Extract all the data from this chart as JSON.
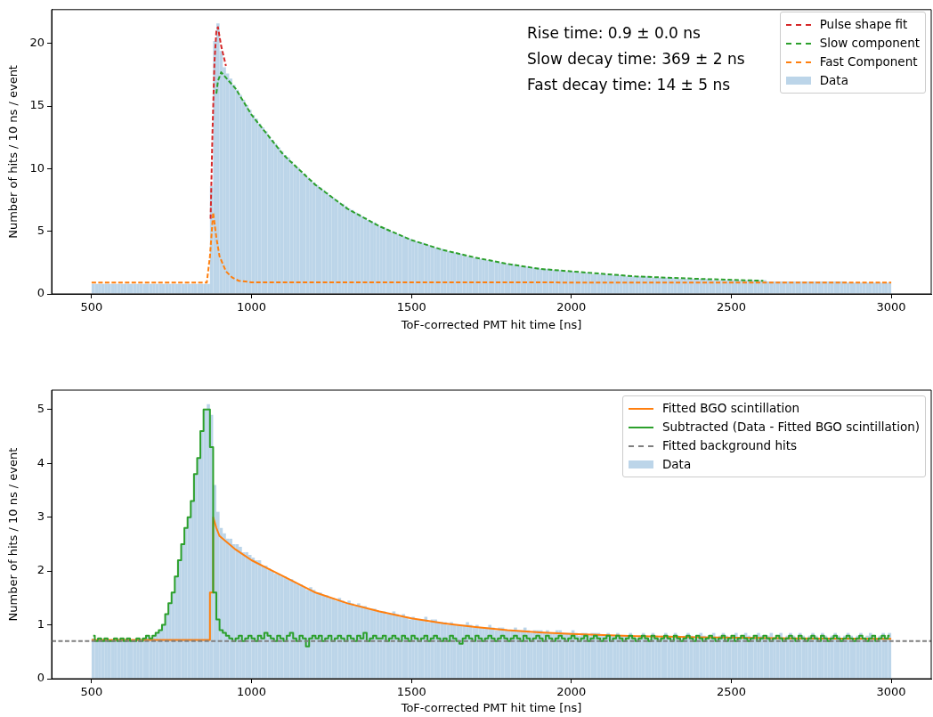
{
  "chart_data": [
    {
      "type": "histogram",
      "xlabel": "ToF-corrected PMT hit time [ns]",
      "ylabel": "Number of hits / 10 ns / event",
      "annotations": [
        "Rise time: 0.9 ± 0.0 ns",
        "Slow decay time: 369 ± 2 ns",
        "Fast decay time: 14 ± 5 ns"
      ],
      "legend": "top right",
      "grid": false,
      "xlim": [
        375,
        3125
      ],
      "ylim": [
        0,
        22.7
      ],
      "xticks": [
        500,
        1000,
        1500,
        2000,
        2500,
        3000
      ],
      "yticks": [
        0,
        5,
        10,
        15,
        20
      ],
      "bins": [
        500,
        510,
        520,
        530,
        540,
        550,
        560,
        570,
        580,
        590,
        600,
        610,
        620,
        630,
        640,
        650,
        660,
        670,
        680,
        690,
        700,
        710,
        720,
        730,
        740,
        750,
        760,
        770,
        780,
        790,
        800,
        810,
        820,
        830,
        840,
        850,
        860,
        870,
        880,
        890,
        900,
        910,
        920,
        930,
        940,
        950,
        960,
        970,
        980,
        990,
        1000,
        1010,
        1020,
        1030,
        1040,
        1050,
        1060,
        1070,
        1080,
        1090,
        1100,
        1110,
        1120,
        1130,
        1140,
        1150,
        1160,
        1170,
        1180,
        1190,
        1200,
        1210,
        1220,
        1230,
        1240,
        1250,
        1260,
        1270,
        1280,
        1290,
        1300,
        1310,
        1320,
        1330,
        1340,
        1350,
        1360,
        1370,
        1380,
        1390,
        1400,
        1410,
        1420,
        1430,
        1440,
        1450,
        1460,
        1470,
        1480,
        1490,
        1500,
        1510,
        1520,
        1530,
        1540,
        1550,
        1560,
        1570,
        1580,
        1590,
        1600,
        1610,
        1620,
        1630,
        1640,
        1650,
        1660,
        1670,
        1680,
        1690,
        1700,
        1710,
        1720,
        1730,
        1740,
        1750,
        1760,
        1770,
        1780,
        1790,
        1800,
        1810,
        1820,
        1830,
        1840,
        1850,
        1860,
        1870,
        1880,
        1890,
        1900,
        1910,
        1920,
        1930,
        1940,
        1950,
        1960,
        1970,
        1980,
        1990,
        2000,
        2010,
        2020,
        2030,
        2040,
        2050,
        2060,
        2070,
        2080,
        2090,
        2100,
        2110,
        2120,
        2130,
        2140,
        2150,
        2160,
        2170,
        2180,
        2190,
        2200,
        2210,
        2220,
        2230,
        2240,
        2250,
        2260,
        2270,
        2280,
        2290,
        2300,
        2310,
        2320,
        2330,
        2340,
        2350,
        2360,
        2370,
        2380,
        2390,
        2400,
        2410,
        2420,
        2430,
        2440,
        2450,
        2460,
        2470,
        2480,
        2490,
        2500,
        2510,
        2520,
        2530,
        2540,
        2550,
        2560,
        2570,
        2580,
        2590,
        2600,
        2610,
        2620,
        2630,
        2640,
        2650,
        2660,
        2670,
        2680,
        2690,
        2700,
        2710,
        2720,
        2730,
        2740,
        2750,
        2760,
        2770,
        2780,
        2790,
        2800,
        2810,
        2820,
        2830,
        2840,
        2850,
        2860,
        2870,
        2880,
        2890,
        2900,
        2910,
        2920,
        2930,
        2940,
        2950,
        2960,
        2970,
        2980,
        2990,
        3000
      ],
      "series": [
        {
          "type": "line",
          "name": "Pulse shape fit",
          "color": "#d62728",
          "line_style": "dashed",
          "x": [
            872,
            878,
            884,
            890,
            895,
            905,
            920
          ],
          "values": [
            6,
            13,
            18.5,
            21,
            21.3,
            19.8,
            18.2
          ]
        },
        {
          "type": "line",
          "name": "Slow component",
          "color": "#2ca02c",
          "line_style": "dashed",
          "x": [
            890,
            895,
            905,
            950,
            1000,
            1100,
            1200,
            1300,
            1400,
            1500,
            1600,
            1700,
            1800,
            1900,
            2000,
            2200,
            2400,
            2600
          ],
          "values": [
            16,
            17,
            17.7,
            16.4,
            14.3,
            11.1,
            8.7,
            6.8,
            5.4,
            4.3,
            3.5,
            2.9,
            2.4,
            2.0,
            1.8,
            1.4,
            1.2,
            1.05
          ]
        },
        {
          "type": "line",
          "name": "Fast Component",
          "color": "#ff7f0e",
          "line_style": "dashed",
          "x": [
            500,
            860,
            870,
            880,
            890,
            900,
            920,
            940,
            960,
            1000,
            3000
          ],
          "values": [
            0.9,
            0.9,
            3,
            6.5,
            4.5,
            3,
            1.8,
            1.3,
            1.05,
            0.93,
            0.9
          ]
        },
        {
          "type": "histogram",
          "name": "Data",
          "color": "#bcd5e9",
          "values": [
            0.8,
            0.8,
            0.8,
            0.8,
            0.8,
            0.8,
            0.8,
            0.8,
            0.8,
            0.8,
            0.8,
            0.8,
            0.8,
            0.8,
            0.8,
            0.8,
            0.8,
            0.8,
            0.8,
            0.8,
            0.8,
            0.8,
            0.8,
            0.8,
            0.8,
            0.8,
            0.8,
            0.8,
            0.8,
            0.8,
            0.8,
            0.8,
            0.8,
            0.8,
            0.8,
            0.8,
            0.8,
            8.6,
            20.2,
            21.6,
            19.4,
            18.1,
            17.6,
            17.2,
            16.7,
            16.3,
            15.9,
            15.5,
            15.1,
            14.7,
            14.3,
            14.0,
            13.6,
            13.3,
            13.0,
            12.6,
            12.3,
            12.0,
            11.7,
            11.4,
            11.1,
            10.9,
            10.6,
            10.3,
            10.1,
            9.8,
            9.6,
            9.3,
            9.1,
            8.9,
            8.7,
            8.5,
            8.3,
            8.1,
            7.9,
            7.7,
            7.5,
            7.3,
            7.2,
            7.0,
            6.8,
            6.7,
            6.5,
            6.4,
            6.2,
            6.1,
            5.9,
            5.8,
            5.7,
            5.5,
            5.4,
            5.3,
            5.2,
            5.0,
            4.9,
            4.8,
            4.7,
            4.6,
            4.5,
            4.4,
            4.3,
            4.2,
            4.1,
            4.1,
            4.0,
            3.9,
            3.8,
            3.7,
            3.6,
            3.6,
            3.5,
            3.4,
            3.4,
            3.3,
            3.2,
            3.2,
            3.1,
            3.0,
            3.0,
            2.9,
            2.9,
            2.8,
            2.8,
            2.7,
            2.7,
            2.6,
            2.6,
            2.5,
            2.5,
            2.4,
            2.4,
            2.4,
            2.3,
            2.3,
            2.2,
            2.2,
            2.2,
            2.1,
            2.1,
            2.1,
            2.0,
            2.0,
            2.0,
            2.0,
            1.9,
            1.9,
            1.9,
            1.8,
            1.8,
            1.8,
            1.8,
            1.7,
            1.7,
            1.7,
            1.7,
            1.7,
            1.6,
            1.6,
            1.6,
            1.6,
            1.6,
            1.5,
            1.5,
            1.5,
            1.5,
            1.5,
            1.5,
            1.4,
            1.4,
            1.4,
            1.4,
            1.4,
            1.4,
            1.4,
            1.3,
            1.3,
            1.3,
            1.3,
            1.3,
            1.3,
            1.3,
            1.3,
            1.2,
            1.2,
            1.2,
            1.2,
            1.2,
            1.2,
            1.2,
            1.2,
            1.2,
            1.2,
            1.2,
            1.2,
            1.1,
            1.1,
            1.1,
            1.1,
            1.1,
            1.1,
            1.1,
            1.1,
            1.1,
            1.1,
            1.1,
            1.1,
            1.1,
            1.1,
            1.1,
            1.1,
            1.1,
            1.0,
            1.0,
            1.0,
            1.0,
            1.0,
            1.0,
            1.0,
            1.0,
            1.0,
            1.0,
            1.0,
            1.0,
            1.0,
            1.0,
            1.0,
            1.0,
            1.0,
            1.0,
            1.0,
            1.0,
            1.0,
            1.0,
            1.0,
            1.0,
            1.0,
            0.9,
            0.9,
            0.9,
            0.9,
            0.9,
            0.9,
            0.9,
            0.9,
            0.9,
            0.9,
            0.9,
            0.9,
            0.9,
            0.9
          ]
        }
      ]
    },
    {
      "type": "histogram",
      "xlabel": "ToF-corrected PMT hit time [ns]",
      "ylabel": "Number of hits / 10 ns / event",
      "legend": "top right",
      "grid": false,
      "xlim": [
        375,
        3125
      ],
      "ylim": [
        0,
        5.36
      ],
      "xticks": [
        500,
        1000,
        1500,
        2000,
        2500,
        3000
      ],
      "yticks": [
        0,
        1,
        2,
        3,
        4,
        5
      ],
      "bins": [
        500,
        510,
        520,
        530,
        540,
        550,
        560,
        570,
        580,
        590,
        600,
        610,
        620,
        630,
        640,
        650,
        660,
        670,
        680,
        690,
        700,
        710,
        720,
        730,
        740,
        750,
        760,
        770,
        780,
        790,
        800,
        810,
        820,
        830,
        840,
        850,
        860,
        870,
        880,
        890,
        900,
        910,
        920,
        930,
        940,
        950,
        960,
        970,
        980,
        990,
        1000,
        1010,
        1020,
        1030,
        1040,
        1050,
        1060,
        1070,
        1080,
        1090,
        1100,
        1110,
        1120,
        1130,
        1140,
        1150,
        1160,
        1170,
        1180,
        1190,
        1200,
        1210,
        1220,
        1230,
        1240,
        1250,
        1260,
        1270,
        1280,
        1290,
        1300,
        1310,
        1320,
        1330,
        1340,
        1350,
        1360,
        1370,
        1380,
        1390,
        1400,
        1410,
        1420,
        1430,
        1440,
        1450,
        1460,
        1470,
        1480,
        1490,
        1500,
        1510,
        1520,
        1530,
        1540,
        1550,
        1560,
        1570,
        1580,
        1590,
        1600,
        1610,
        1620,
        1630,
        1640,
        1650,
        1660,
        1670,
        1680,
        1690,
        1700,
        1710,
        1720,
        1730,
        1740,
        1750,
        1760,
        1770,
        1780,
        1790,
        1800,
        1810,
        1820,
        1830,
        1840,
        1850,
        1860,
        1870,
        1880,
        1890,
        1900,
        1910,
        1920,
        1930,
        1940,
        1950,
        1960,
        1970,
        1980,
        1990,
        2000,
        2010,
        2020,
        2030,
        2040,
        2050,
        2060,
        2070,
        2080,
        2090,
        2100,
        2110,
        2120,
        2130,
        2140,
        2150,
        2160,
        2170,
        2180,
        2190,
        2200,
        2210,
        2220,
        2230,
        2240,
        2250,
        2260,
        2270,
        2280,
        2290,
        2300,
        2310,
        2320,
        2330,
        2340,
        2350,
        2360,
        2370,
        2380,
        2390,
        2400,
        2410,
        2420,
        2430,
        2440,
        2450,
        2460,
        2470,
        2480,
        2490,
        2500,
        2510,
        2520,
        2530,
        2540,
        2550,
        2560,
        2570,
        2580,
        2590,
        2600,
        2610,
        2620,
        2630,
        2640,
        2650,
        2660,
        2670,
        2680,
        2690,
        2700,
        2710,
        2720,
        2730,
        2740,
        2750,
        2760,
        2770,
        2780,
        2790,
        2800,
        2810,
        2820,
        2830,
        2840,
        2850,
        2860,
        2870,
        2880,
        2890,
        2900,
        2910,
        2920,
        2930,
        2940,
        2950,
        2960,
        2970,
        2980,
        2990,
        3000
      ],
      "ref_lines": [
        {
          "axis": "y",
          "value": 0.7,
          "label": "Fitted background hits",
          "color": "#7f7f7f",
          "line_style": "dashed"
        }
      ],
      "series": [
        {
          "type": "line",
          "name": "Fitted BGO scintillation",
          "color": "#ff7f0e",
          "x": [
            500,
            870,
            870,
            880,
            880,
            890,
            900,
            950,
            1000,
            1050,
            1100,
            1200,
            1300,
            1400,
            1500,
            1600,
            1700,
            1800,
            1900,
            2000,
            2200,
            2400,
            2700,
            3000
          ],
          "values": [
            0.72,
            0.72,
            1.6,
            1.6,
            3.0,
            2.8,
            2.65,
            2.4,
            2.2,
            2.05,
            1.9,
            1.6,
            1.4,
            1.25,
            1.12,
            1.03,
            0.96,
            0.9,
            0.86,
            0.83,
            0.79,
            0.77,
            0.75,
            0.74
          ]
        },
        {
          "type": "step",
          "name": "Subtracted (Data - Fitted BGO scintillation)",
          "color": "#2ca02c",
          "x": [
            505,
            515,
            525,
            535,
            545,
            555,
            565,
            575,
            585,
            595,
            605,
            615,
            625,
            635,
            645,
            655,
            665,
            675,
            685,
            695,
            705,
            715,
            725,
            735,
            745,
            755,
            765,
            775,
            785,
            795,
            805,
            815,
            825,
            835,
            845,
            855,
            865,
            875,
            885,
            895,
            905,
            915,
            925,
            935,
            945,
            955,
            965,
            975,
            985,
            995,
            1005,
            1015,
            1025,
            1035,
            1045,
            1055,
            1065,
            1075,
            1085,
            1095,
            1105,
            1115,
            1125,
            1135,
            1145,
            1155,
            1165,
            1175,
            1185,
            1195,
            1205,
            1215,
            1225,
            1235,
            1245,
            1255,
            1265,
            1275,
            1285,
            1295,
            1305,
            1315,
            1325,
            1335,
            1345,
            1355,
            1365,
            1375,
            1385,
            1395,
            1405,
            1415,
            1425,
            1435,
            1445,
            1455,
            1465,
            1475,
            1485,
            1495,
            1505,
            1515,
            1525,
            1535,
            1545,
            1555,
            1565,
            1575,
            1585,
            1595,
            1605,
            1615,
            1625,
            1635,
            1645,
            1655,
            1665,
            1675,
            1685,
            1695,
            1705,
            1715,
            1725,
            1735,
            1745,
            1755,
            1765,
            1775,
            1785,
            1795,
            1805,
            1815,
            1825,
            1835,
            1845,
            1855,
            1865,
            1875,
            1885,
            1895,
            1905,
            1915,
            1925,
            1935,
            1945,
            1955,
            1965,
            1975,
            1985,
            1995,
            2005,
            2015,
            2025,
            2035,
            2045,
            2055,
            2065,
            2075,
            2085,
            2095,
            2105,
            2115,
            2125,
            2135,
            2145,
            2155,
            2165,
            2175,
            2185,
            2195,
            2205,
            2215,
            2225,
            2235,
            2245,
            2255,
            2265,
            2275,
            2285,
            2295,
            2305,
            2315,
            2325,
            2335,
            2345,
            2355,
            2365,
            2375,
            2385,
            2395,
            2405,
            2415,
            2425,
            2435,
            2445,
            2455,
            2465,
            2475,
            2485,
            2495,
            2505,
            2515,
            2525,
            2535,
            2545,
            2555,
            2565,
            2575,
            2585,
            2595,
            2605,
            2615,
            2625,
            2635,
            2645,
            2655,
            2665,
            2675,
            2685,
            2695,
            2705,
            2715,
            2725,
            2735,
            2745,
            2755,
            2765,
            2775,
            2785,
            2795,
            2805,
            2815,
            2825,
            2835,
            2845,
            2855,
            2865,
            2875,
            2885,
            2895,
            2905,
            2915,
            2925,
            2935,
            2945,
            2955,
            2965,
            2975,
            2985,
            2995
          ],
          "values": [
            0.8,
            0.7,
            0.75,
            0.7,
            0.75,
            0.7,
            0.7,
            0.75,
            0.7,
            0.75,
            0.7,
            0.75,
            0.7,
            0.7,
            0.75,
            0.7,
            0.75,
            0.8,
            0.75,
            0.8,
            0.85,
            0.9,
            1.0,
            1.2,
            1.4,
            1.6,
            1.9,
            2.2,
            2.5,
            2.8,
            3.0,
            3.3,
            3.8,
            4.1,
            4.6,
            5.0,
            5.0,
            4.3,
            1.6,
            1.1,
            0.9,
            0.85,
            0.8,
            0.75,
            0.7,
            0.75,
            0.8,
            0.7,
            0.75,
            0.8,
            0.75,
            0.7,
            0.8,
            0.75,
            0.85,
            0.8,
            0.75,
            0.7,
            0.8,
            0.75,
            0.7,
            0.8,
            0.85,
            0.75,
            0.7,
            0.8,
            0.75,
            0.6,
            0.75,
            0.8,
            0.75,
            0.8,
            0.7,
            0.75,
            0.8,
            0.7,
            0.75,
            0.8,
            0.75,
            0.7,
            0.8,
            0.75,
            0.7,
            0.8,
            0.75,
            0.85,
            0.7,
            0.75,
            0.8,
            0.75,
            0.75,
            0.8,
            0.7,
            0.75,
            0.8,
            0.75,
            0.7,
            0.8,
            0.75,
            0.7,
            0.8,
            0.75,
            0.7,
            0.75,
            0.8,
            0.7,
            0.75,
            0.8,
            0.75,
            0.7,
            0.75,
            0.7,
            0.8,
            0.75,
            0.7,
            0.65,
            0.75,
            0.8,
            0.75,
            0.7,
            0.8,
            0.75,
            0.7,
            0.75,
            0.8,
            0.75,
            0.7,
            0.75,
            0.8,
            0.75,
            0.7,
            0.75,
            0.8,
            0.75,
            0.7,
            0.8,
            0.75,
            0.7,
            0.75,
            0.8,
            0.75,
            0.7,
            0.8,
            0.75,
            0.7,
            0.75,
            0.8,
            0.75,
            0.7,
            0.75,
            0.8,
            0.75,
            0.7,
            0.75,
            0.8,
            0.7,
            0.75,
            0.8,
            0.75,
            0.7,
            0.75,
            0.8,
            0.7,
            0.75,
            0.8,
            0.75,
            0.7,
            0.75,
            0.8,
            0.75,
            0.7,
            0.75,
            0.8,
            0.75,
            0.7,
            0.8,
            0.75,
            0.7,
            0.75,
            0.8,
            0.75,
            0.7,
            0.8,
            0.75,
            0.7,
            0.75,
            0.8,
            0.75,
            0.7,
            0.8,
            0.75,
            0.7,
            0.75,
            0.8,
            0.75,
            0.7,
            0.75,
            0.8,
            0.7,
            0.75,
            0.8,
            0.7,
            0.75,
            0.8,
            0.75,
            0.7,
            0.75,
            0.8,
            0.7,
            0.75,
            0.8,
            0.75,
            0.7,
            0.75,
            0.8,
            0.75,
            0.7,
            0.75,
            0.8,
            0.75,
            0.7,
            0.8,
            0.75,
            0.7,
            0.75,
            0.8,
            0.75,
            0.7,
            0.8,
            0.75,
            0.7,
            0.75,
            0.8,
            0.75,
            0.7,
            0.75,
            0.8,
            0.75,
            0.7,
            0.75,
            0.8,
            0.75,
            0.7,
            0.75,
            0.8,
            0.7,
            0.75,
            0.8,
            0.75,
            0.8
          ]
        },
        {
          "type": "histogram",
          "name": "Data",
          "color": "#bcd5e9",
          "values": [
            0.75,
            0.7,
            0.75,
            0.7,
            0.75,
            0.7,
            0.7,
            0.75,
            0.7,
            0.75,
            0.7,
            0.75,
            0.7,
            0.7,
            0.75,
            0.7,
            0.75,
            0.8,
            0.75,
            0.8,
            0.85,
            0.9,
            1.0,
            1.2,
            1.4,
            1.6,
            1.9,
            2.2,
            2.5,
            2.8,
            3.0,
            3.3,
            3.8,
            4.1,
            4.6,
            5.0,
            5.1,
            4.9,
            3.6,
            3.1,
            2.8,
            2.7,
            2.6,
            2.6,
            2.5,
            2.5,
            2.45,
            2.35,
            2.35,
            2.3,
            2.25,
            2.2,
            2.2,
            2.1,
            2.1,
            2.05,
            2.0,
            1.95,
            1.95,
            1.9,
            1.9,
            1.85,
            1.85,
            1.8,
            1.75,
            1.75,
            1.7,
            1.65,
            1.7,
            1.65,
            1.6,
            1.6,
            1.55,
            1.55,
            1.5,
            1.5,
            1.45,
            1.5,
            1.45,
            1.4,
            1.45,
            1.4,
            1.35,
            1.4,
            1.35,
            1.35,
            1.3,
            1.3,
            1.3,
            1.25,
            1.25,
            1.25,
            1.2,
            1.2,
            1.25,
            1.2,
            1.15,
            1.2,
            1.15,
            1.1,
            1.15,
            1.1,
            1.1,
            1.1,
            1.15,
            1.05,
            1.1,
            1.1,
            1.05,
            1.05,
            1.05,
            1.0,
            1.05,
            1.0,
            1.0,
            1.0,
            1.0,
            1.05,
            1.0,
            0.95,
            1.0,
            0.95,
            0.95,
            0.95,
            1.0,
            0.95,
            0.9,
            0.95,
            0.95,
            0.9,
            0.9,
            0.9,
            0.95,
            0.9,
            0.9,
            0.95,
            0.9,
            0.85,
            0.9,
            0.9,
            0.9,
            0.85,
            0.9,
            0.85,
            0.85,
            0.9,
            0.9,
            0.85,
            0.85,
            0.85,
            0.9,
            0.85,
            0.8,
            0.85,
            0.85,
            0.8,
            0.85,
            0.85,
            0.85,
            0.8,
            0.8,
            0.85,
            0.8,
            0.8,
            0.85,
            0.8,
            0.8,
            0.8,
            0.85,
            0.8,
            0.75,
            0.8,
            0.85,
            0.8,
            0.75,
            0.85,
            0.8,
            0.75,
            0.8,
            0.85,
            0.8,
            0.75,
            0.85,
            0.8,
            0.75,
            0.8,
            0.85,
            0.8,
            0.75,
            0.8,
            0.85,
            0.8,
            0.75,
            0.8,
            0.85,
            0.75,
            0.8,
            0.85,
            0.8,
            0.75,
            0.8,
            0.85,
            0.75,
            0.8,
            0.85,
            0.8,
            0.75,
            0.8,
            0.85,
            0.8,
            0.75,
            0.8,
            0.85,
            0.75,
            0.8,
            0.85,
            0.75,
            0.8,
            0.85,
            0.8,
            0.75,
            0.85,
            0.8,
            0.75,
            0.8,
            0.85,
            0.8,
            0.75,
            0.85,
            0.8,
            0.75,
            0.8,
            0.85,
            0.8,
            0.75,
            0.8,
            0.85,
            0.8,
            0.75,
            0.8,
            0.85,
            0.75,
            0.8,
            0.85,
            0.8,
            0.75,
            0.8,
            0.85,
            0.75,
            0.85
          ]
        }
      ]
    }
  ]
}
